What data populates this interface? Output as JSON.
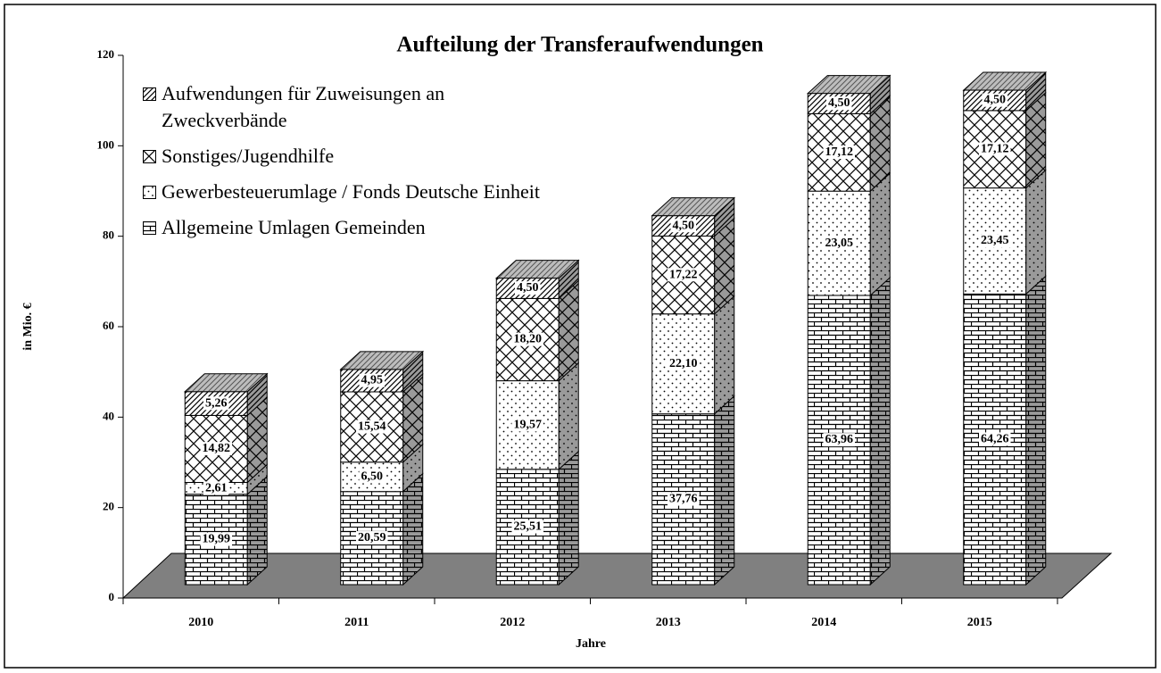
{
  "chart_data": {
    "type": "bar3d_stacked",
    "title": "Aufteilung der Transferaufwendungen",
    "y_label": "in Mio. €",
    "x_label": "Jahre",
    "categories": [
      "2010",
      "2011",
      "2012",
      "2013",
      "2014",
      "2015"
    ],
    "series": [
      {
        "name": "Allgemeine Umlagen Gemeinden",
        "pattern": "brick",
        "values": [
          19.99,
          20.59,
          25.51,
          37.76,
          63.96,
          64.26
        ],
        "value_labels": [
          "19,99",
          "20,59",
          "25,51",
          "37,76",
          "63,96",
          "64,26"
        ]
      },
      {
        "name": "Gewerbesteuerumlage / Fonds Deutsche Einheit",
        "pattern": "dots",
        "values": [
          2.61,
          6.5,
          19.57,
          22.1,
          23.05,
          23.45
        ],
        "value_labels": [
          "2,61",
          "6,50",
          "19,57",
          "22,10",
          "23,05",
          "23,45"
        ]
      },
      {
        "name": "Sonstiges/Jugendhilfe",
        "pattern": "cross",
        "values": [
          14.82,
          15.54,
          18.2,
          17.22,
          17.12,
          17.12
        ],
        "value_labels": [
          "14,82",
          "15,54",
          "18,20",
          "17,22",
          "17,12",
          "17,12"
        ]
      },
      {
        "name": "Aufwendungen für Zuweisungen an Zweckverbände",
        "pattern": "diag",
        "values": [
          5.26,
          4.95,
          4.5,
          4.5,
          4.5,
          4.5
        ],
        "value_labels": [
          "5,26",
          "4,95",
          "4,50",
          "4,50",
          "4,50",
          "4,50"
        ]
      }
    ],
    "ylim": [
      0,
      120
    ],
    "yticks": [
      0,
      20,
      40,
      60,
      80,
      100,
      120
    ],
    "grid": false,
    "legend": "upper left"
  }
}
